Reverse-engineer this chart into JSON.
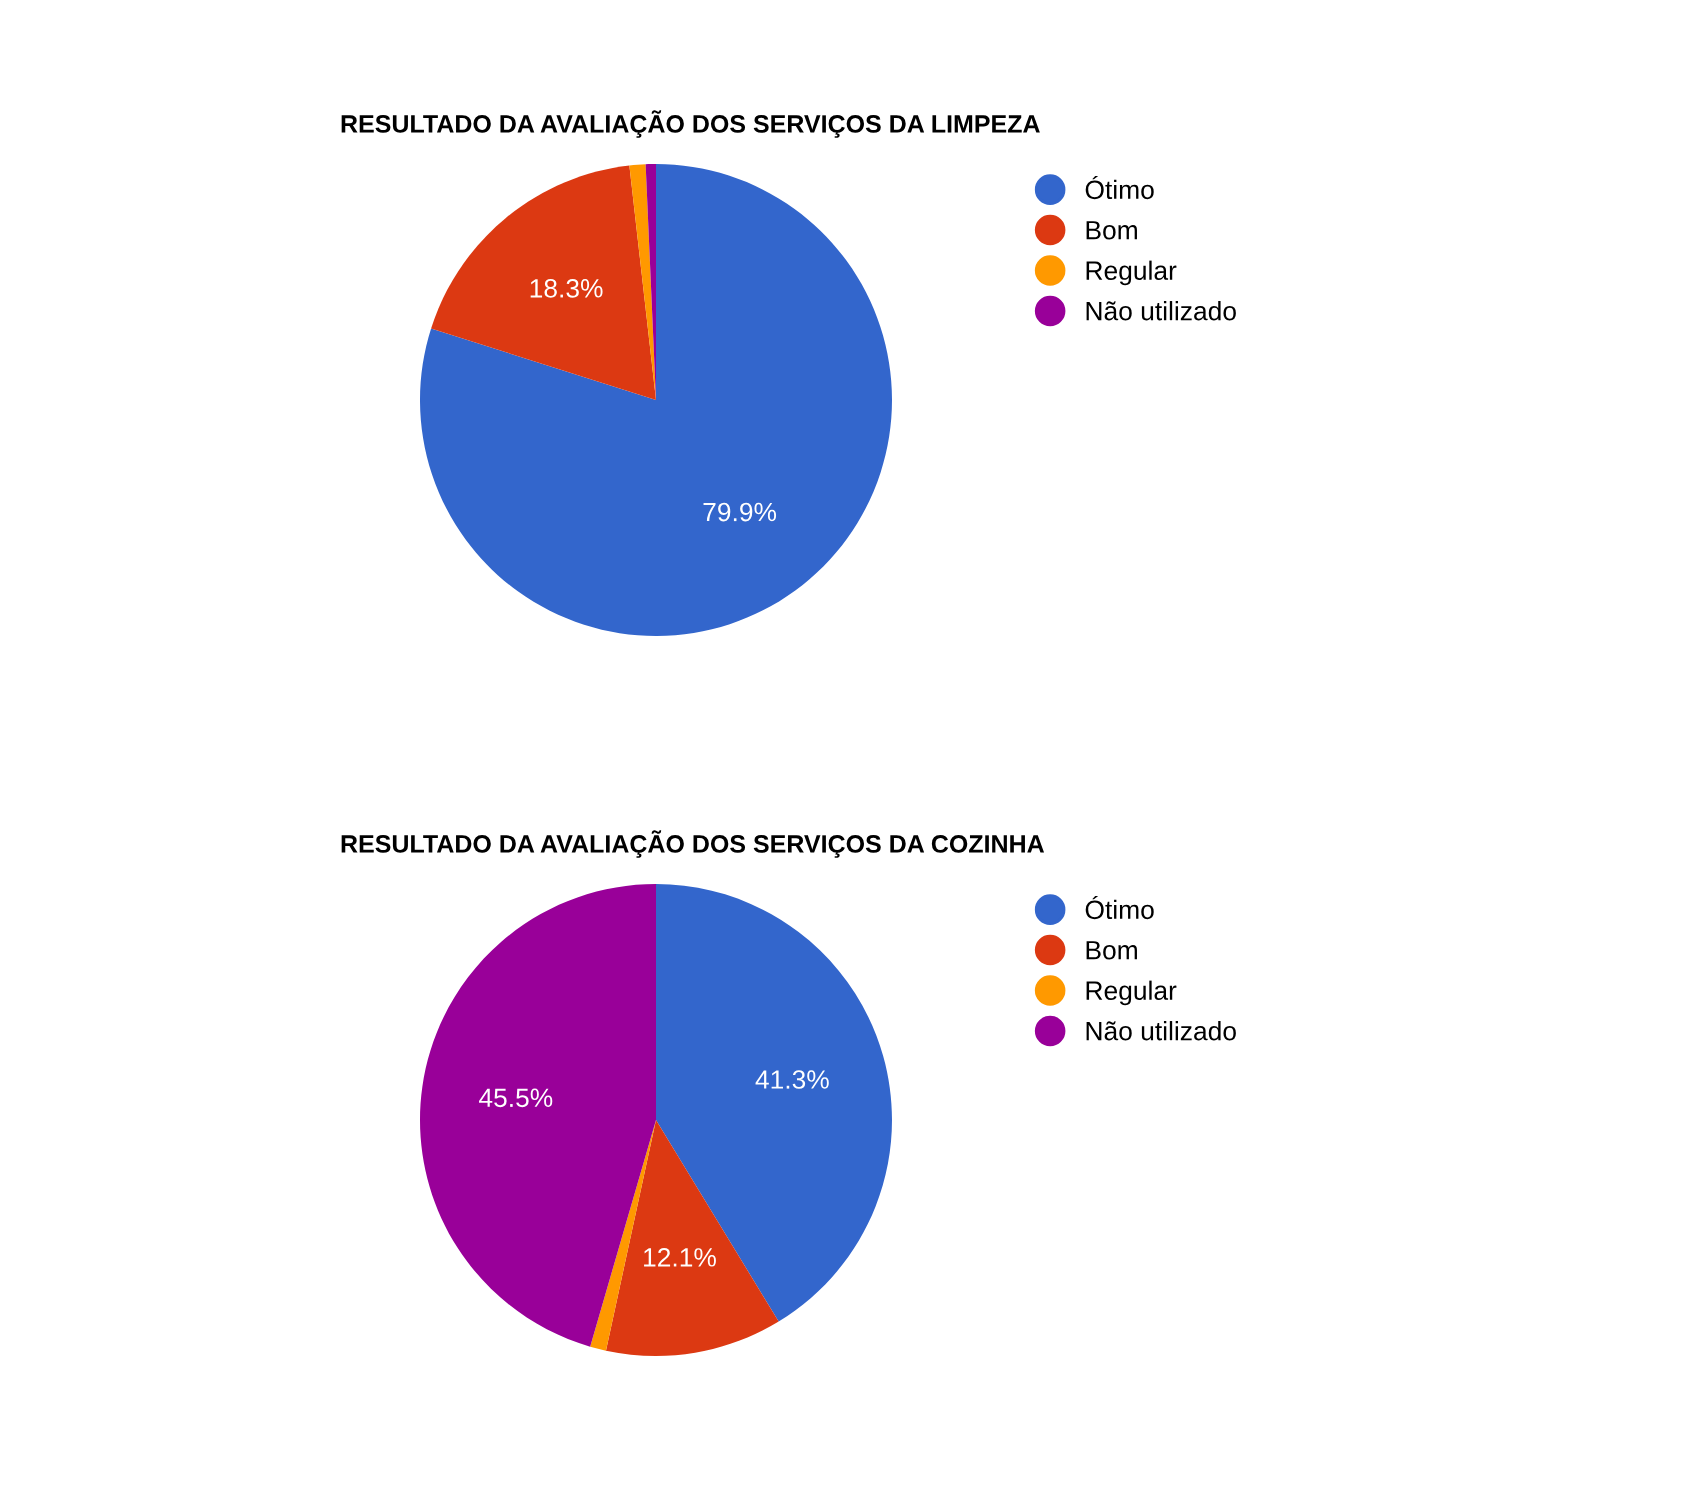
{
  "chart_data": [
    {
      "type": "pie",
      "title": "RESULTADO DA AVALIAÇÃO DOS SERVIÇOS DA LIMPEZA",
      "categories": [
        "Ótimo",
        "Bom",
        "Regular",
        "Não utilizado"
      ],
      "values": [
        79.9,
        18.3,
        1.1,
        0.7
      ],
      "colors": [
        "#3366cc",
        "#dc3912",
        "#ff9900",
        "#990099"
      ],
      "value_labels": [
        "79.9%",
        "18.3%",
        null,
        null
      ],
      "legend": "right"
    },
    {
      "type": "pie",
      "title": "RESULTADO DA AVALIAÇÃO DOS SERVIÇOS DA COZINHA",
      "categories": [
        "Ótimo",
        "Bom",
        "Regular",
        "Não utilizado"
      ],
      "values": [
        41.3,
        12.1,
        1.1,
        45.5
      ],
      "colors": [
        "#3366cc",
        "#dc3912",
        "#ff9900",
        "#990099"
      ],
      "value_labels": [
        "41.3%",
        "12.1%",
        null,
        "45.5%"
      ],
      "legend": "right"
    }
  ]
}
